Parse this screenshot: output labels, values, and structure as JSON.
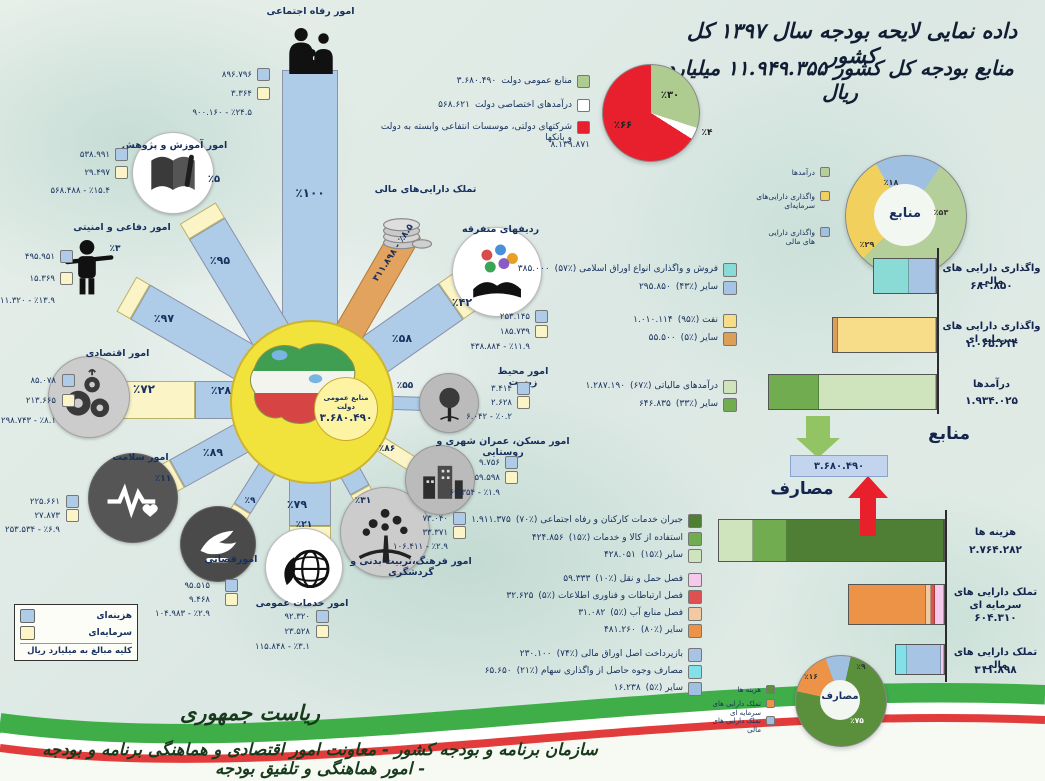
{
  "colors": {
    "expense_blue": "#aecbe8",
    "capital_yellow": "#faf4c6",
    "orange_ray": "#e2a35e",
    "pie_red": "#e81f2c",
    "pie_green": "#aecb90",
    "flow_down_green": "#93c463",
    "flow_up_red": "#e8202c",
    "value_box_blue": "#c3d4ee",
    "hub_yellow": "#f2e23c"
  },
  "title": {
    "line1": "داده نمایی لایحه بودجه سال ۱۳۹۷ کل کشور",
    "line2": "منابع بودجه کل کشور ۱۱.۹۴۹.۳۵۵ میلیارد ریال"
  },
  "top_pie": {
    "slices": [
      {
        "label": "منابع عمومی دولت",
        "percent": "٪۳۰",
        "pct": 30,
        "color": "#aecb90"
      },
      {
        "label": "درآمدهای اختصاصی دولت",
        "percent": "٪۴",
        "pct": 4,
        "color": "#ffffff"
      },
      {
        "label": "شرکتهای دولتی، موسسات انتفاعی وابسته به دولت و بانکها",
        "percent": "٪۶۶",
        "pct": 66,
        "color": "#e81f2c"
      }
    ],
    "legend": [
      {
        "label": "منابع عمومی دولت",
        "value": "۳.۶۸۰.۴۹۰",
        "color": "#aecb90"
      },
      {
        "label": "درآمدهای اختصاصی دولت",
        "value": "۵۶۸.۶۲۱",
        "color": "#ffffff"
      },
      {
        "label": "شرکتهای دولتی، موسسات انتفاعی وابسته به دولت و بانکها",
        "value": "",
        "color": "#e81f2c"
      },
      {
        "label": "",
        "value": "۸.۱۳۹.۸۷۱",
        "color": null
      }
    ]
  },
  "radial": {
    "center": {
      "label": "منابع عمومی دولت",
      "value": "۳.۶۸۰.۴۹۰"
    },
    "sectors": [
      {
        "id": "refah",
        "title": "امور رفاه اجتماعی",
        "icon": "family-icon",
        "expense": "۸۹۶.۷۹۶",
        "capital": "۳.۳۶۴",
        "total": "۹۰۰.۱۶۰ - ٪۲۴.۵",
        "ray_labels": [
          "٪۱۰۰"
        ]
      },
      {
        "id": "amoozesh",
        "title": "امور آموزش و پژوهش",
        "icon": "book-icon",
        "expense": "۵۳۸.۹۹۱",
        "capital": "۲۹.۴۹۷",
        "total": "۵۶۸.۴۸۸ - ٪۱۵.۴",
        "ray_labels": [
          "٪۹۵",
          "٪۵"
        ]
      },
      {
        "id": "defa",
        "title": "امور دفاعی و امنیتی",
        "icon": "soldier-icon",
        "expense": "۴۹۵.۹۵۱",
        "capital": "۱۵.۳۶۹",
        "total": "۵۱۱.۳۲۰ - ٪۱۳.۹",
        "ray_labels": [
          "٪۹۷",
          "٪۳"
        ]
      },
      {
        "id": "eqtesadi",
        "title": "امور اقتصادی",
        "icon": "gears-icon",
        "expense": "۸۵.۰۷۸",
        "capital": "۲۱۳.۶۶۵",
        "total": "۲۹۸.۷۴۳ - ٪۸.۱",
        "ray_labels": [
          "٪۲۸",
          "٪۷۲"
        ]
      },
      {
        "id": "salamat",
        "title": "امور سلامت",
        "icon": "heartbeat-icon",
        "expense": "۲۲۵.۶۶۱",
        "capital": "۲۷.۸۷۳",
        "total": "۲۵۳.۵۳۴ - ٪۶.۹",
        "ray_labels": [
          "٪۸۹",
          "٪۱۱"
        ]
      },
      {
        "id": "qazai",
        "title": "امورقضائی",
        "icon": "dove-gavel-icon",
        "expense": "۹۵.۵۱۵",
        "capital": "۹.۴۶۸",
        "total": "۱۰۴.۹۸۳ - ٪۲.۹",
        "ray_labels": [
          "٪۹"
        ]
      },
      {
        "id": "khadamat",
        "title": "امور خدمات عمومی",
        "icon": "globe-leaf-icon",
        "expense": "۹۲.۳۲۰",
        "capital": "۲۳.۵۲۸",
        "total": "۱۱۵.۸۴۸ - ٪۳.۱",
        "ray_labels": [
          "٪۷۹",
          "٪۲۱"
        ]
      },
      {
        "id": "farhang",
        "title": "امور فرهنگ،تربیت بدنی و گردشگری",
        "icon": "people-tree-icon",
        "expense": "۷۳.۰۴۰",
        "capital": "۳۳.۳۷۱",
        "total": "۱۰۶.۴۱۱ - ٪۲.۹",
        "ray_labels": [
          "٪۳۱"
        ]
      },
      {
        "id": "maskan",
        "title": "امور مسکن، عمران شهری و روستایی",
        "icon": "buildings-icon",
        "expense": "۹.۷۵۶",
        "capital": "۵۹.۵۹۸",
        "total": "۶۹.۳۵۴ - ٪۱.۹",
        "ray_labels": [
          "٪۸۶"
        ]
      },
      {
        "id": "mohit",
        "title": "امور محیط زیست",
        "icon": "tree-icon",
        "expense": "۳.۴۱۴",
        "capital": "۲.۶۲۸",
        "total": "۶.۰۴۲ - ٪۰.۲",
        "ray_labels": [
          "٪۵۵"
        ]
      },
      {
        "id": "radif",
        "title": "ردیفهای متفرقه",
        "icon": "misc-rows-icon",
        "expense": "۲۵۳.۱۴۵",
        "capital": "۱۸۵.۷۳۹",
        "total": "۴۳۸.۸۸۴ - ٪۱۱.۹",
        "ray_labels": [
          "٪۵۸",
          "٪۴۲"
        ]
      },
      {
        "id": "tamallok_mali",
        "title": "تملک دارایی‌های مالی",
        "icon": "coins-icon",
        "ray_value_label": "۳۱۱.۸۹۸ - ٪۸.۵",
        "ray_labels": []
      }
    ]
  },
  "unit_legend": {
    "expense": "هزینه‌ای",
    "capital": "سرمایه‌ای",
    "note": "کلیه مبالغ به میلیارد ریال"
  },
  "mid_details": {
    "groups": [
      [
        {
          "label": "فروش و واگذاری انواع اوراق اسلامی (٪۵۷)",
          "value": "۳۸۵.۰۰۰",
          "color": "#8adbd6"
        },
        {
          "label": "سایر (٪۴۳)",
          "value": "۲۹۵.۸۵۰",
          "color": "#a7c4e4"
        }
      ],
      [
        {
          "label": "نفت (٪۹۵)",
          "value": "۱.۰۱۰.۱۱۴",
          "color": "#f7dd8a"
        },
        {
          "label": "سایر (٪۵)",
          "value": "۵۵.۵۰۰",
          "color": "#dd9e55"
        }
      ],
      [
        {
          "label": "درآمدهای مالیاتی (٪۶۷)",
          "value": "۱.۲۸۷.۱۹۰",
          "color": "#cfe3bd"
        },
        {
          "label": "سایر (٪۳۳)",
          "value": "۶۴۶.۸۳۵",
          "color": "#71ad50"
        }
      ]
    ]
  },
  "resources_donut": {
    "center": "منابع",
    "slices": [
      {
        "label": "واگذاری دارایی های مالی",
        "percent": "٪۱۸",
        "pct": 18,
        "color": "#9fc0e0"
      },
      {
        "label": "درآمدها",
        "percent": "٪۵۳",
        "pct": 53,
        "color": "#b5cf9b"
      },
      {
        "label": "واگذاری دارایی‌های سرمایه‌ای",
        "percent": "٪۲۹",
        "pct": 29,
        "color": "#f2d05e"
      }
    ],
    "legend": [
      {
        "label": "درآمدها",
        "color": "#b5cf9b"
      },
      {
        "label": "واگذاری دارایی‌های سرمایه‌ای",
        "color": "#f2d05e"
      },
      {
        "label": "واگذاری دارایی های مالی",
        "color": "#9fc0e0"
      }
    ]
  },
  "resources_bars": [
    {
      "label": "واگذاری دارایی های مالی",
      "value": "۶۸۰.۸۵۰",
      "segments": [
        {
          "color": "#8adbd6",
          "pct": 57
        },
        {
          "color": "#a7c4e4",
          "pct": 43
        }
      ]
    },
    {
      "label": "واگذاری دارایی های سرمایه ای",
      "value": "۱.۰۶۵.۶۱۴",
      "segments": [
        {
          "color": "#dd9e55",
          "pct": 5
        },
        {
          "color": "#f7dd8a",
          "pct": 95
        }
      ]
    },
    {
      "label": "درآمدها",
      "value": "۱.۹۳۴.۰۲۵",
      "segments": [
        {
          "color": "#71ad50",
          "pct": 30
        },
        {
          "color": "#cfe3bd",
          "pct": 70
        }
      ]
    }
  ],
  "flow": {
    "resources_label": "منابع",
    "uses_label": "مصارف",
    "value": "۳.۶۸۰.۴۹۰"
  },
  "uses_bars": [
    {
      "label": "هزینه ها",
      "value": "۲.۷۶۴.۲۸۲",
      "segments": [
        {
          "color": "#cfe3bd",
          "pct": 15
        },
        {
          "color": "#71ad50",
          "pct": 15
        },
        {
          "color": "#4f7f35",
          "pct": 70
        }
      ]
    },
    {
      "label": "تملک دارایی های سرمایه ای",
      "value": "۶۰۴.۳۱۰",
      "segments": [
        {
          "color": "#ec9347",
          "pct": 81
        },
        {
          "color": "#f2c9a0",
          "pct": 5
        },
        {
          "color": "#df5050",
          "pct": 5
        },
        {
          "color": "#f6c8ec",
          "pct": 9
        }
      ]
    },
    {
      "label": "تملک دارایی های مالی",
      "value": "۳۱۱.۸۹۸",
      "segments": [
        {
          "color": "#84e0e8",
          "pct": 23
        },
        {
          "color": "#a7c4e4",
          "pct": 70
        },
        {
          "color": "#f6c8ec",
          "pct": 7
        }
      ]
    }
  ],
  "uses_details": {
    "groups": [
      [
        {
          "label": "جبران خدمات کارکنان و رفاه اجتماعی (٪۷۰)",
          "value": "۱.۹۱۱.۳۷۵",
          "color": "#4f7f35"
        },
        {
          "label": "استفاده از کالا و خدمات (٪۱۵)",
          "value": "۴۲۴.۸۵۶",
          "color": "#71ad50"
        },
        {
          "label": "سایر (٪۱۵)",
          "value": "۴۲۸.۰۵۱",
          "color": "#cfe3bd"
        }
      ],
      [
        {
          "label": "فصل حمل و نقل (٪۱۰)",
          "value": "۵۹.۳۳۳",
          "color": "#f6c8ec"
        },
        {
          "label": "فصل ارتباطات و فناوری اطلاعات (٪۵)",
          "value": "۳۲.۶۲۵",
          "color": "#df5050"
        },
        {
          "label": "فصل منابع آب (٪۵)",
          "value": "۳۱.۰۸۲",
          "color": "#f2c9a0"
        },
        {
          "label": "سایر (٪۸۰)",
          "value": "۴۸۱.۲۶۰",
          "color": "#ec9347"
        }
      ],
      [
        {
          "label": "بازپرداخت اصل اوراق مالی (٪۷۴)",
          "value": "۲۳۰.۱۰۰",
          "color": "#a7c4e4"
        },
        {
          "label": "مصارف وجوه حاصل از واگذاری سهام (٪۲۱)",
          "value": "۶۵.۶۵۰",
          "color": "#84e0e8"
        },
        {
          "label": "سایر (٪۵)",
          "value": "۱۶.۲۳۸",
          "color": "#9fc0e0"
        }
      ]
    ]
  },
  "uses_donut": {
    "center": "مصارف",
    "slices": [
      {
        "label": "تملک دارایی های مالی",
        "percent": "٪۹",
        "pct": 9,
        "color": "#9fc0e0"
      },
      {
        "label": "هزینه ها",
        "percent": "٪۷۵",
        "pct": 75,
        "color": "#5a8f3c"
      },
      {
        "label": "تملک دارایی های سرمایه ای",
        "percent": "٪۱۶",
        "pct": 16,
        "color": "#ec9347"
      }
    ],
    "legend": [
      {
        "label": "هزینه ها",
        "color": "#5a8f3c"
      },
      {
        "label": "تملک دارایی های سرمایه ای",
        "color": "#ec9347"
      },
      {
        "label": "تملک دارایی های مالی",
        "color": "#9fc0e0"
      }
    ]
  },
  "footer": {
    "line1": "ریاست جمهوری",
    "line2": "سازمان برنامه و بودجه کشور - معاونت امور اقتصادی و هماهنگی برنامه و بودجه - امور هماهنگی و تلفیق بودجه"
  },
  "chart_data": [
    {
      "type": "pie",
      "title": "منابع بودجه کل کشور ۱۳۹۷",
      "unit": "میلیارد ریال",
      "categories": [
        "منابع عمومی دولت",
        "درآمدهای اختصاصی دولت",
        "شرکتهای دولتی، موسسات انتفاعی وابسته به دولت و بانکها"
      ],
      "values_percent": [
        30,
        4,
        66
      ],
      "values": [
        3680490,
        568621,
        8139871
      ],
      "total": 11949355
    },
    {
      "type": "bar",
      "title": "منابع عمومی دولت به تفکیک امور",
      "unit": "میلیارد ریال",
      "categories": [
        "امور رفاه اجتماعی",
        "امور آموزش و پژوهش",
        "امور دفاعی و امنیتی",
        "امور اقتصادی",
        "امور سلامت",
        "امورقضائی",
        "امور خدمات عمومی",
        "امور فرهنگ،تربیت بدنی و گردشگری",
        "امور مسکن، عمران شهری و روستایی",
        "امور محیط زیست",
        "ردیفهای متفرقه",
        "تملک دارایی‌های مالی"
      ],
      "series": [
        {
          "name": "هزینه‌ای",
          "values": [
            896796,
            538991,
            495951,
            85078,
            225661,
            95515,
            92320,
            73040,
            9756,
            3414,
            253145,
            null
          ]
        },
        {
          "name": "سرمایه‌ای",
          "values": [
            3364,
            29497,
            15369,
            213665,
            27873,
            9468,
            23528,
            33371,
            59598,
            2628,
            185739,
            null
          ]
        },
        {
          "name": "جمع",
          "values": [
            900160,
            568488,
            511320,
            298743,
            253534,
            104983,
            115848,
            106411,
            69354,
            6042,
            438884,
            311898
          ]
        }
      ],
      "share_percent": [
        24.5,
        15.4,
        13.9,
        8.1,
        6.9,
        2.9,
        3.1,
        2.9,
        1.9,
        0.2,
        11.9,
        8.5
      ]
    },
    {
      "type": "pie",
      "title": "ترکیب منابع",
      "categories": [
        "درآمدها",
        "واگذاری دارایی‌های سرمایه‌ای",
        "واگذاری دارایی های مالی"
      ],
      "values_percent": [
        53,
        29,
        18
      ]
    },
    {
      "type": "bar",
      "title": "منابع",
      "unit": "میلیارد ریال",
      "categories": [
        "واگذاری دارایی های مالی",
        "واگذاری دارایی های سرمایه ای",
        "درآمدها"
      ],
      "values": [
        680850,
        1065614,
        1934025
      ],
      "breakdown": [
        {
          "فروش و واگذاری انواع اوراق اسلامی": 385000,
          "سایر": 295850
        },
        {
          "نفت": 1010114,
          "سایر": 55500
        },
        {
          "درآمدهای مالیاتی": 1287190,
          "سایر": 646835
        }
      ],
      "flow_total": 3680490
    },
    {
      "type": "bar",
      "title": "مصارف",
      "unit": "میلیارد ریال",
      "categories": [
        "هزینه ها",
        "تملک دارایی های سرمایه ای",
        "تملک دارایی های مالی"
      ],
      "values": [
        2764282,
        604310,
        311898
      ],
      "breakdown": [
        {
          "جبران خدمات کارکنان و رفاه اجتماعی": 1911375,
          "استفاده از کالا و خدمات": 424856,
          "سایر": 428051
        },
        {
          "فصل حمل و نقل": 59333,
          "فصل ارتباطات و فناوری اطلاعات": 32625,
          "فصل منابع آب": 31082,
          "سایر": 481260
        },
        {
          "بازپرداخت اصل اوراق مالی": 230100,
          "مصارف وجوه حاصل از واگذاری سهام": 65650,
          "سایر": 16238
        }
      ]
    },
    {
      "type": "pie",
      "title": "ترکیب مصارف",
      "categories": [
        "هزینه ها",
        "تملک دارایی های سرمایه ای",
        "تملک دارایی های مالی"
      ],
      "values_percent": [
        75,
        16,
        9
      ]
    }
  ]
}
